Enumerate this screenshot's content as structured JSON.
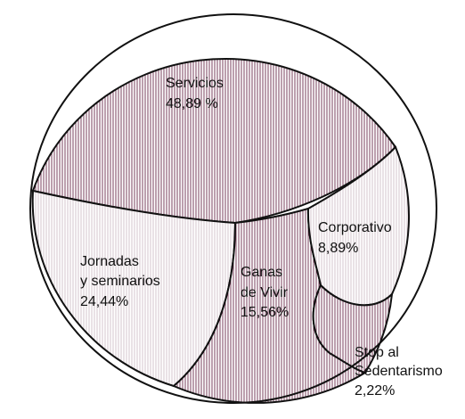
{
  "chart_data": {
    "type": "pie",
    "title": "",
    "slices": [
      {
        "name": "Servicios",
        "value": 48.89,
        "label_lines": [
          "Servicios",
          "48,89 %"
        ],
        "pattern": "dense"
      },
      {
        "name": "Jornadas y seminarios",
        "value": 24.44,
        "label_lines": [
          "Jornadas",
          "y seminarios",
          "24,44%"
        ],
        "pattern": "light"
      },
      {
        "name": "Ganas de Vivir",
        "value": 15.56,
        "label_lines": [
          "Ganas",
          "de Vivir",
          "15,56%"
        ],
        "pattern": "dense"
      },
      {
        "name": "Corporativo",
        "value": 8.89,
        "label_lines": [
          "Corporativo",
          "8,89%"
        ],
        "pattern": "light"
      },
      {
        "name": "Stop al Sedentarismo",
        "value": 2.22,
        "label_lines": [
          "Stop al",
          "Sedentarismo",
          "2,22%"
        ],
        "pattern": "dense"
      }
    ]
  },
  "colors": {
    "outline": "#111111",
    "dense_stripe": "#6b2a4a",
    "light_stripe": "#b9a3ae",
    "background": "#ffffff"
  }
}
